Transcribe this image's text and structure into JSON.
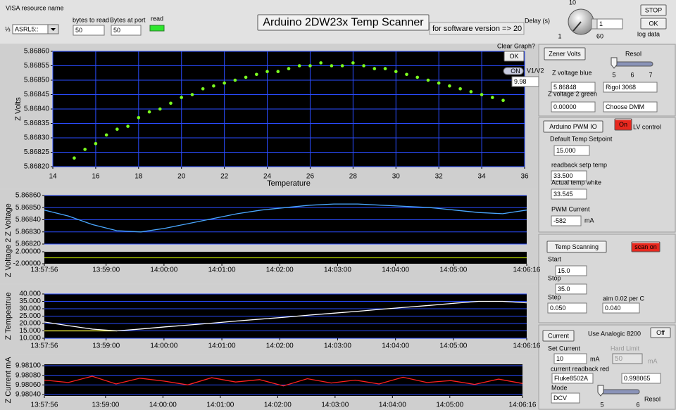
{
  "header": {
    "visa_label": "VISA resource name",
    "visa_value": "ASRL5::",
    "bytes_to_read_label": "bytes to read",
    "bytes_to_read": 50,
    "bytes_at_port_label": "Bytes at port",
    "bytes_at_port": 50,
    "read_label": "read",
    "title": "Arduino  2DW23x Temp Scanner",
    "version_note": "for software version => 20",
    "delay_label": "Delay (s)",
    "delay_ticks": [
      10,
      1,
      60
    ],
    "delay_value": 1,
    "stop_button": "STOP",
    "ok_button": "OK",
    "log_data_label": "log data"
  },
  "plots": [
    {
      "type": "scatter",
      "x_label": "Temperature",
      "y_label": "Z Volts",
      "color": "#7cff20",
      "grid": "both",
      "xlim": [
        14,
        36
      ],
      "xticks": [
        14,
        16,
        18,
        20,
        22,
        24,
        26,
        28,
        30,
        32,
        34,
        36
      ],
      "ylim": [
        5.8682,
        5.8686
      ],
      "yticks": [
        {
          "value": 5.8682,
          "label": "5.86820"
        },
        {
          "value": 5.86825,
          "label": "5.86825"
        },
        {
          "value": 5.8683,
          "label": "5.86830"
        },
        {
          "value": 5.86835,
          "label": "5.86835"
        },
        {
          "value": 5.8684,
          "label": "5.86840"
        },
        {
          "value": 5.86845,
          "label": "5.86845"
        },
        {
          "value": 5.8685,
          "label": "5.86850"
        },
        {
          "value": 5.86855,
          "label": "5.86855"
        },
        {
          "value": 5.8686,
          "label": "5.86860"
        }
      ],
      "x": [
        15,
        15.5,
        16,
        16.5,
        17,
        17.5,
        18,
        18.5,
        19,
        19.5,
        20,
        20.5,
        21,
        21.5,
        22,
        22.5,
        23,
        23.5,
        24,
        24.5,
        25,
        25.5,
        26,
        26.5,
        27,
        27.5,
        28,
        28.5,
        29,
        29.5,
        30,
        30.5,
        31,
        31.5,
        32,
        32.5,
        33,
        33.5,
        34,
        34.5,
        35
      ],
      "values": [
        5.86823,
        5.86826,
        5.86828,
        5.86831,
        5.86833,
        5.86834,
        5.86837,
        5.86839,
        5.8684,
        5.86842,
        5.86844,
        5.86845,
        5.86847,
        5.86848,
        5.86849,
        5.8685,
        5.86851,
        5.86852,
        5.86853,
        5.86853,
        5.86854,
        5.86855,
        5.86855,
        5.86856,
        5.86855,
        5.86855,
        5.86856,
        5.86855,
        5.86854,
        5.86854,
        5.86853,
        5.86852,
        5.86851,
        5.8685,
        5.86849,
        5.86848,
        5.86847,
        5.86846,
        5.86845,
        5.86844,
        5.86843
      ]
    },
    {
      "type": "line",
      "y_label": "Z Voltage",
      "grid": "y",
      "xlim": [
        "13:57:56",
        "14:06:16"
      ],
      "ylim": [
        5.8682,
        5.8686
      ],
      "yticks": [
        {
          "value": 5.8682,
          "label": "5.86820"
        },
        {
          "value": 5.8683,
          "label": "5.86830"
        },
        {
          "value": 5.8684,
          "label": "5.86840"
        },
        {
          "value": 5.8685,
          "label": "5.86850"
        },
        {
          "value": 5.8686,
          "label": "5.86860"
        }
      ],
      "x": [
        "13:57:56",
        "13:58:21",
        "13:58:46",
        "13:59:11",
        "13:59:36",
        "14:00:01",
        "14:00:26",
        "14:00:51",
        "14:01:16",
        "14:01:41",
        "14:02:06",
        "14:02:31",
        "14:02:56",
        "14:03:21",
        "14:03:46",
        "14:04:11",
        "14:04:36",
        "14:05:01",
        "14:05:26",
        "14:05:51",
        "14:06:16"
      ],
      "series": [
        {
          "color": "#4aa8ff",
          "values": [
            5.86848,
            5.86843,
            5.86836,
            5.86831,
            5.8683,
            5.86833,
            5.86837,
            5.86841,
            5.86845,
            5.86848,
            5.8685,
            5.86852,
            5.86853,
            5.86853,
            5.86852,
            5.86851,
            5.8685,
            5.86848,
            5.86846,
            5.86845,
            5.86848
          ]
        }
      ]
    },
    {
      "type": "line",
      "y_label": "Z Voltage 2",
      "grid": "none",
      "xlim": [
        "13:57:56",
        "14:06:16"
      ],
      "xticks": [
        "13:57:56",
        "13:59:00",
        "14:00:00",
        "14:01:00",
        "14:02:00",
        "14:03:00",
        "14:04:00",
        "14:05:00",
        "14:06:16"
      ],
      "ylim": [
        -2,
        2
      ],
      "yticks": [
        {
          "value": -2,
          "label": "-2.00000"
        },
        {
          "value": 2,
          "label": "2.00000"
        }
      ],
      "x": [
        "13:57:56",
        "13:58:21",
        "13:58:46",
        "13:59:11",
        "13:59:36",
        "14:00:01",
        "14:00:26",
        "14:00:51",
        "14:01:16",
        "14:01:41",
        "14:02:06",
        "14:02:31",
        "14:02:56",
        "14:03:21",
        "14:03:46",
        "14:04:11",
        "14:04:36",
        "14:05:01",
        "14:05:26",
        "14:05:51",
        "14:06:16"
      ],
      "series": [
        {
          "color": "#a8c800",
          "values": [
            0,
            0,
            0,
            0,
            0,
            0,
            0,
            0,
            0,
            0,
            0,
            0,
            0,
            0,
            0,
            0,
            0,
            0,
            0,
            0,
            0
          ]
        }
      ]
    },
    {
      "type": "line",
      "y_label": "Z Tempeatrue",
      "grid": "y",
      "xlim": [
        "13:57:56",
        "14:06:16"
      ],
      "xticks": [
        "13:57:56",
        "13:59:00",
        "14:00:00",
        "14:01:00",
        "14:02:00",
        "14:03:00",
        "14:04:00",
        "14:05:00",
        "14:06:16"
      ],
      "ylim": [
        10,
        40
      ],
      "yticks": [
        {
          "value": 10,
          "label": "10.000"
        },
        {
          "value": 15,
          "label": "15.000"
        },
        {
          "value": 20,
          "label": "20.000"
        },
        {
          "value": 25,
          "label": "25.000"
        },
        {
          "value": 30,
          "label": "30.000"
        },
        {
          "value": 35,
          "label": "35.000"
        },
        {
          "value": 40,
          "label": "40.000"
        }
      ],
      "x": [
        "13:57:56",
        "13:58:21",
        "13:58:46",
        "13:59:11",
        "13:59:36",
        "14:00:01",
        "14:00:26",
        "14:00:51",
        "14:01:16",
        "14:01:41",
        "14:02:06",
        "14:02:31",
        "14:02:56",
        "14:03:21",
        "14:03:46",
        "14:04:11",
        "14:04:36",
        "14:05:01",
        "14:05:26",
        "14:05:51",
        "14:06:16"
      ],
      "series": [
        {
          "color": "#ffff40",
          "values": [
            15,
            15,
            15,
            15,
            null,
            null,
            null,
            null,
            null,
            null,
            null,
            null,
            null,
            null,
            null,
            null,
            null,
            null,
            null,
            null,
            null
          ]
        },
        {
          "color": "#ffffff",
          "values": [
            21,
            18.5,
            16.2,
            15,
            16.3,
            17.7,
            19,
            20.3,
            21.7,
            23,
            24.3,
            25.7,
            27,
            28.3,
            29.7,
            31,
            32.3,
            33.7,
            35,
            35,
            34
          ]
        }
      ]
    },
    {
      "type": "line",
      "y_label": "Z Current mA",
      "grid": "y",
      "xlim": [
        "13:57:56",
        "14:06:16"
      ],
      "xticks": [
        "13:57:56",
        "13:59:00",
        "14:00:00",
        "14:01:00",
        "14:02:00",
        "14:03:00",
        "14:04:00",
        "14:05:00",
        "14:06:16"
      ],
      "ylim": [
        9.98037,
        9.98103
      ],
      "yticks": [
        {
          "value": 9.9804,
          "label": "9.98040"
        },
        {
          "value": 9.9806,
          "label": "9.98060"
        },
        {
          "value": 9.9808,
          "label": "9.98080"
        },
        {
          "value": 9.981,
          "label": "9.98100"
        }
      ],
      "x": [
        "13:57:56",
        "13:58:21",
        "13:58:46",
        "13:59:11",
        "13:59:36",
        "14:00:01",
        "14:00:26",
        "14:00:51",
        "14:01:16",
        "14:01:41",
        "14:02:06",
        "14:02:31",
        "14:02:56",
        "14:03:21",
        "14:03:46",
        "14:04:11",
        "14:04:36",
        "14:05:01",
        "14:05:26",
        "14:05:51",
        "14:06:16"
      ],
      "series": [
        {
          "color": "#ff2020",
          "values": [
            9.9807,
            9.98065,
            9.98078,
            9.98062,
            9.98074,
            9.98068,
            9.9806,
            9.98075,
            9.98066,
            9.98071,
            9.98058,
            9.98073,
            9.98064,
            9.9807,
            9.98062,
            9.98076,
            9.98065,
            9.98069,
            9.98061,
            9.98072,
            9.98063
          ]
        }
      ]
    }
  ],
  "plot_controls": {
    "clear_graph_label": "Clear Graph?",
    "ok_button": "OK",
    "toggle": "ON",
    "toggle_label": "V1/V2",
    "ratio_value": "9.98"
  },
  "zener_volts": {
    "button": "Zener Volts",
    "resol_label": "Resol",
    "resol_ticks": [
      5,
      6,
      7
    ],
    "blue_label": "Z voltage blue",
    "blue_value": "5.86848",
    "blue_meter": "Rigol 3068",
    "green_label": "Z voltage  2 green",
    "green_value": "0.00000",
    "green_meter": "Choose DMM"
  },
  "pwm": {
    "button": "Arduino PWM IO",
    "on_button": "On",
    "lv_label": "LV control",
    "setpoint_label": "Default Temp  Setpoint",
    "setpoint": "15.000",
    "readback_label": "readback setp  temp",
    "readback": "33.500",
    "actual_label": "Actual temp white",
    "actual": "33.545",
    "current_label": "PWM Current",
    "current": "-582",
    "current_unit": "mA"
  },
  "scan": {
    "button": "Temp Scanning",
    "scan_button": "scan on",
    "start_label": "Start",
    "start": "15.0",
    "stop_label": "Stop",
    "stop": "35.0",
    "step_label": "Step",
    "step": "0.050",
    "aim_label": "aim 0.02 per C",
    "aim": "0.040"
  },
  "current": {
    "button": "Current",
    "analogic_label": "Use Analogic 8200",
    "off_button": "Off",
    "set_label": "Set Current",
    "set_value": 10,
    "set_unit": "mA",
    "limit_label": "Hard Limit",
    "limit_value": 50,
    "limit_unit": "mA",
    "readback_label": "current  readback red",
    "meter": "Fluke8502A",
    "readback": "0.998065",
    "mode_label": "Mode",
    "mode": "DCV",
    "resol_ticks": [
      5,
      6
    ],
    "resol_label": "Resol"
  }
}
